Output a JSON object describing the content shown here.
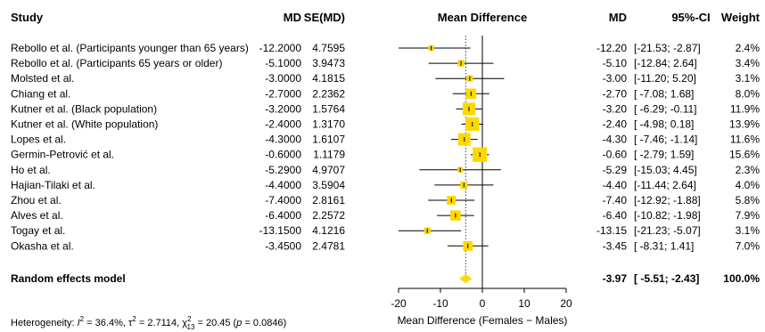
{
  "chart_data": {
    "type": "forest",
    "headers": {
      "study": "Study",
      "md": "MD",
      "se": "SE(MD)",
      "plot": "Mean Difference",
      "md2": "MD",
      "ci": "95%-CI",
      "weight": "Weight"
    },
    "studies": [
      {
        "name": "Rebollo et al. (Participants younger than 65 years)",
        "md": "-12.2000",
        "se": "4.7595",
        "md_r": "-12.20",
        "ci": "[-21.53; -2.87]",
        "weight": "2.4%",
        "est": -12.2,
        "lo": -21.53,
        "hi": -2.87,
        "w": 2.4
      },
      {
        "name": "Rebollo et al. (Participants 65 years or older)",
        "md": "-5.1000",
        "se": "3.9473",
        "md_r": "-5.10",
        "ci": "[-12.84; 2.64]",
        "weight": "3.4%",
        "est": -5.1,
        "lo": -12.84,
        "hi": 2.64,
        "w": 3.4
      },
      {
        "name": "Molsted et al.",
        "md": "-3.0000",
        "se": "4.1815",
        "md_r": "-3.00",
        "ci": "[-11.20; 5.20]",
        "weight": "3.1%",
        "est": -3.0,
        "lo": -11.2,
        "hi": 5.2,
        "w": 3.1
      },
      {
        "name": "Chiang et al.",
        "md": "-2.7000",
        "se": "2.2362",
        "md_r": "-2.70",
        "ci": "[ -7.08; 1.68]",
        "weight": "8.0%",
        "est": -2.7,
        "lo": -7.08,
        "hi": 1.68,
        "w": 8.0
      },
      {
        "name": "Kutner et al. (Black population)",
        "md": "-3.2000",
        "se": "1.5764",
        "md_r": "-3.20",
        "ci": "[ -6.29; -0.11]",
        "weight": "11.9%",
        "est": -3.2,
        "lo": -6.29,
        "hi": -0.11,
        "w": 11.9
      },
      {
        "name": "Kutner et al. (White population)",
        "md": "-2.4000",
        "se": "1.3170",
        "md_r": "-2.40",
        "ci": "[ -4.98; 0.18]",
        "weight": "13.9%",
        "est": -2.4,
        "lo": -4.98,
        "hi": 0.18,
        "w": 13.9
      },
      {
        "name": "Lopes et al.",
        "md": "-4.3000",
        "se": "1.6107",
        "md_r": "-4.30",
        "ci": "[ -7.46; -1.14]",
        "weight": "11.6%",
        "est": -4.3,
        "lo": -7.46,
        "hi": -1.14,
        "w": 11.6
      },
      {
        "name": "Germin-Petrović et al.",
        "md": "-0.6000",
        "se": "1.1179",
        "md_r": "-0.60",
        "ci": "[ -2.79; 1.59]",
        "weight": "15.6%",
        "est": -0.6,
        "lo": -2.79,
        "hi": 1.59,
        "w": 15.6
      },
      {
        "name": "Ho et al.",
        "md": "-5.2900",
        "se": "4.9707",
        "md_r": "-5.29",
        "ci": "[-15.03; 4.45]",
        "weight": "2.3%",
        "est": -5.29,
        "lo": -15.03,
        "hi": 4.45,
        "w": 2.3
      },
      {
        "name": "Hajian-Tilaki et al.",
        "md": "-4.4000",
        "se": "3.5904",
        "md_r": "-4.40",
        "ci": "[-11.44; 2.64]",
        "weight": "4.0%",
        "est": -4.4,
        "lo": -11.44,
        "hi": 2.64,
        "w": 4.0
      },
      {
        "name": "Zhou et al.",
        "md": "-7.4000",
        "se": "2.8161",
        "md_r": "-7.40",
        "ci": "[-12.92; -1.88]",
        "weight": "5.8%",
        "est": -7.4,
        "lo": -12.92,
        "hi": -1.88,
        "w": 5.8
      },
      {
        "name": "Alves et al.",
        "md": "-6.4000",
        "se": "2.2572",
        "md_r": "-6.40",
        "ci": "[-10.82; -1.98]",
        "weight": "7.9%",
        "est": -6.4,
        "lo": -10.82,
        "hi": -1.98,
        "w": 7.9
      },
      {
        "name": "Togay et al.",
        "md": "-13.1500",
        "se": "4.1216",
        "md_r": "-13.15",
        "ci": "[-21.23; -5.07]",
        "weight": "3.1%",
        "est": -13.15,
        "lo": -21.23,
        "hi": -5.07,
        "w": 3.1
      },
      {
        "name": "Okasha et al.",
        "md": "-3.4500",
        "se": "2.4781",
        "md_r": "-3.45",
        "ci": "[ -8.31; 1.41]",
        "weight": "7.0%",
        "est": -3.45,
        "lo": -8.31,
        "hi": 1.41,
        "w": 7.0
      }
    ],
    "pooled": {
      "label": "Random effects model",
      "md_r": "-3.97",
      "ci": "[ -5.51; -2.43]",
      "weight": "100.0%",
      "est": -3.97,
      "lo": -5.51,
      "hi": -2.43
    },
    "heterogeneity": {
      "prefix": "Heterogeneity: ",
      "i2": "36.4%",
      "tau2": "2.7114",
      "chi2": "20.45",
      "df": "13",
      "p": "0.0846"
    },
    "xaxis": {
      "ticks": [
        -20,
        -10,
        0,
        10,
        20
      ],
      "tick_labels": [
        "-20",
        "-10",
        "0",
        "10",
        "20"
      ],
      "xlim": [
        -20,
        20
      ],
      "xlabel": "Mean Difference (Females − Males)"
    },
    "colors": {
      "box": "#FFD700",
      "diamond": "#FFD700",
      "line": "#000000",
      "pooled_line": "#404040"
    }
  }
}
